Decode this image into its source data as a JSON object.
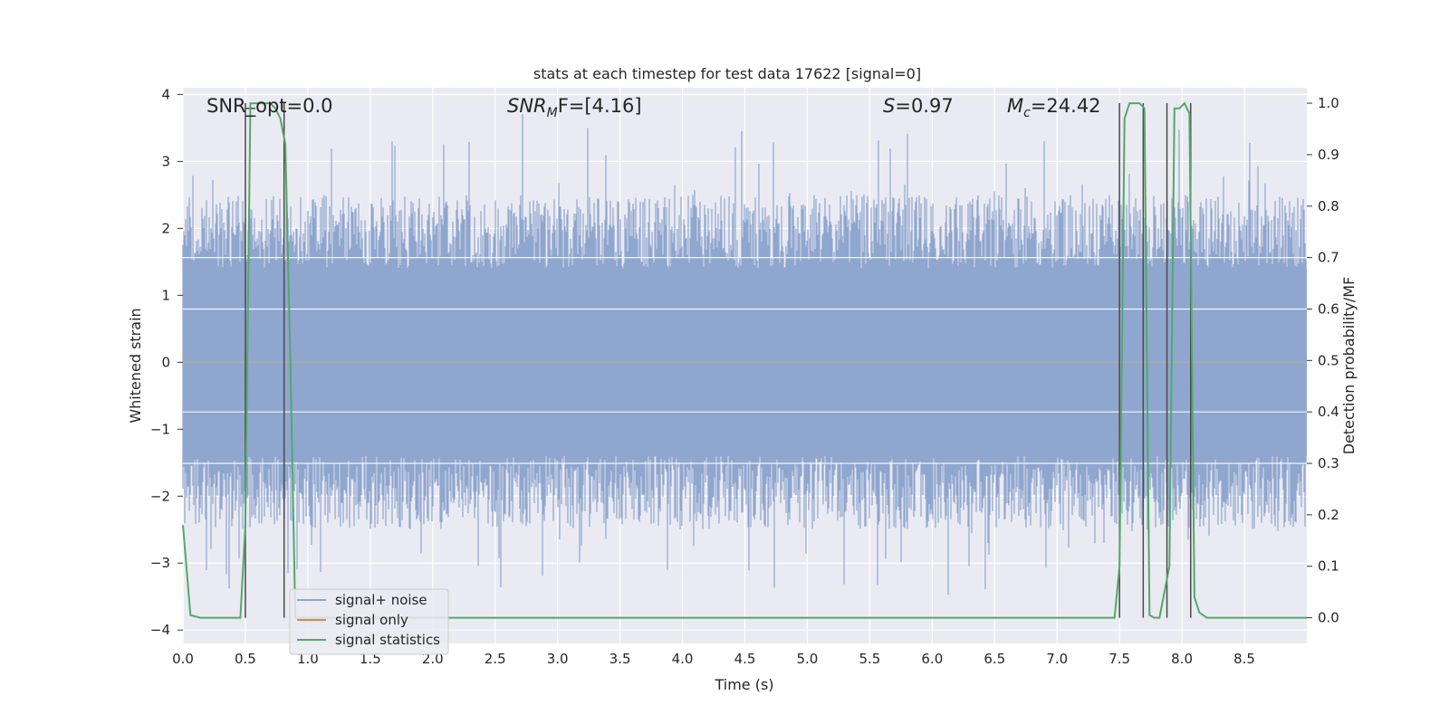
{
  "chart_data": {
    "type": "line",
    "title": "stats at each timestep for test data 17622 [signal=0]",
    "xlabel": "Time (s)",
    "ylabel": "Whitened strain",
    "y2label": "Detection probability/MF",
    "xlim": [
      0.0,
      9.0
    ],
    "ylim": [
      -4.2,
      4.1
    ],
    "y2lim": [
      -0.05,
      1.03
    ],
    "x_ticks": [
      "0.0",
      "0.5",
      "1.0",
      "1.5",
      "2.0",
      "2.5",
      "3.0",
      "3.5",
      "4.0",
      "4.5",
      "5.0",
      "5.5",
      "6.0",
      "6.5",
      "7.0",
      "7.5",
      "8.0",
      "8.5"
    ],
    "y_ticks": [
      "4",
      "3",
      "2",
      "1",
      "0",
      "−1",
      "−2",
      "−3",
      "−4"
    ],
    "y2_ticks": [
      "1.0",
      "0.9",
      "0.8",
      "0.7",
      "0.6",
      "0.5",
      "0.4",
      "0.3",
      "0.2",
      "0.1",
      "0.0"
    ],
    "y2_gridlines": [
      0.3,
      0.4,
      0.6,
      0.7
    ],
    "grid": true,
    "annotations": {
      "snr_opt": "SNR_opt=0.0",
      "snr_mf_prefix": "SNR",
      "snr_mf_sub": "M",
      "snr_mf_suffix": "F=[4.16]",
      "s_prefix": "S",
      "s_suffix": "=0.97",
      "mc_prefix": "M",
      "mc_sub": "c",
      "mc_suffix": "=24.42"
    },
    "legend": {
      "placement": "lower-left",
      "entries": [
        "signal+ noise",
        "signal only",
        "signal statistics"
      ]
    },
    "colors": {
      "noise": "#8fa6cf",
      "signal_only": "#dd8452",
      "statistics": "#55a868",
      "detect_lines": "#4a4a4a",
      "background": "#eaeaf2",
      "grid": "#ffffff"
    },
    "series": [
      {
        "name": "signal+ noise",
        "description_values": "random whitened strain, approx range",
        "envelope_upper": 1.4,
        "envelope_lower": -1.4,
        "peak_max": 4.0,
        "peak_min": -3.7
      },
      {
        "name": "signal only",
        "values_constant": 0.0
      },
      {
        "name": "signal statistics",
        "x": [
          0.0,
          0.06,
          0.14,
          0.2,
          0.26,
          0.3,
          0.34,
          0.38,
          0.42,
          0.46,
          0.5,
          0.54,
          0.58,
          0.62,
          0.66,
          0.7,
          0.74,
          0.78,
          0.82,
          0.86,
          0.9,
          1.0,
          2.0,
          3.0,
          4.0,
          5.0,
          6.0,
          7.0,
          7.4,
          7.46,
          7.5,
          7.54,
          7.58,
          7.62,
          7.66,
          7.7,
          7.74,
          7.78,
          7.82,
          7.86,
          7.9,
          7.94,
          7.98,
          8.02,
          8.06,
          8.1,
          8.14,
          8.2,
          8.3,
          9.0
        ],
        "y": [
          0.18,
          0.005,
          0.0,
          0.0,
          0.0,
          0.0,
          0.0,
          0.0,
          0.0,
          0.0,
          0.18,
          1.0,
          1.0,
          1.0,
          1.0,
          1.0,
          0.99,
          0.97,
          0.92,
          0.5,
          0.0,
          0.0,
          0.0,
          0.0,
          0.0,
          0.0,
          0.0,
          0.0,
          0.0,
          0.0,
          0.1,
          0.97,
          1.0,
          1.0,
          1.0,
          0.99,
          0.005,
          0.0,
          0.0,
          0.05,
          0.1,
          0.99,
          0.99,
          1.0,
          0.98,
          0.04,
          0.01,
          0.0,
          0.0,
          0.0
        ]
      }
    ],
    "detection_lines_x": [
      0.5,
      0.81,
      7.5,
      7.69,
      7.88,
      8.07
    ]
  }
}
